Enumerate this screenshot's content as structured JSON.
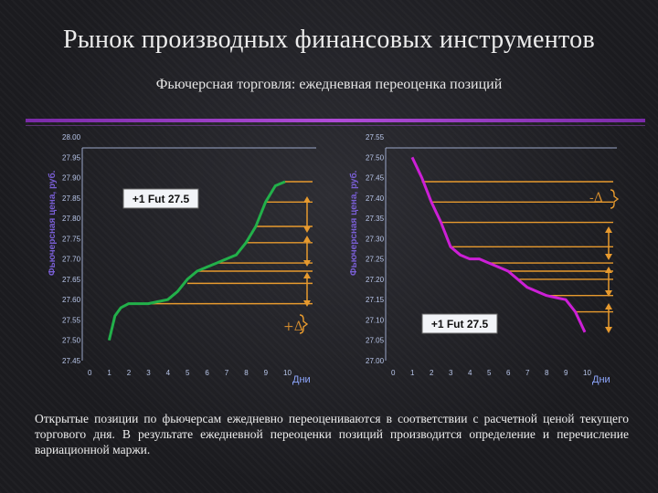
{
  "slide": {
    "title": "Рынок производных финансовых инструментов",
    "subtitle": "Фьючерсная торговля: ежедневная переоценка позиций",
    "body": "Открытые позиции по фьючерсам ежедневно переоцениваются в соответствии с расчетной ценой текущего торгового дня. В результате ежедневной переоценки позиций производится определение и перечисление вариационной маржи."
  },
  "colors": {
    "green_line": "#22b04a",
    "magenta_line": "#cc1fd6",
    "orange": "#e79a2e",
    "tick": "#b8c6ea",
    "axis_unit": "#8fa8ff",
    "divider": "#a040d0"
  },
  "chart_data": [
    {
      "type": "line",
      "ylabel": "Фьючерсная цена, руб.",
      "xlabel": "Дни",
      "x_ticks": [
        "0",
        "1",
        "2",
        "3",
        "4",
        "5",
        "6",
        "7",
        "8",
        "9",
        "10"
      ],
      "y_ticks": [
        "27.45",
        "27.50",
        "27.55",
        "27.60",
        "27.65",
        "27.70",
        "27.75",
        "27.80",
        "27.85",
        "27.90",
        "27.95",
        "28.00"
      ],
      "xlim": [
        0,
        10.5
      ],
      "ylim": [
        27.45,
        28.0
      ],
      "series": [
        {
          "color": "#22b04a",
          "x": [
            1,
            1.3,
            1.6,
            2,
            3,
            3.5,
            4,
            4.5,
            5,
            5.5,
            6,
            6.5,
            7,
            7.5,
            8,
            8.5,
            9,
            9.5,
            10
          ],
          "y": [
            27.5,
            27.56,
            27.58,
            27.59,
            27.59,
            27.595,
            27.6,
            27.62,
            27.65,
            27.67,
            27.68,
            27.69,
            27.7,
            27.71,
            27.74,
            27.78,
            27.84,
            27.88,
            27.89
          ]
        }
      ],
      "annotations": [
        "+1 Fut 27.5",
        "+Δ"
      ],
      "reference_levels": [
        27.89,
        27.84,
        27.78,
        27.74,
        27.69,
        27.67,
        27.64,
        27.59
      ]
    },
    {
      "type": "line",
      "ylabel": "Фьючерсная цена, руб.",
      "xlabel": "Дни",
      "x_ticks": [
        "0",
        "1",
        "2",
        "3",
        "4",
        "5",
        "6",
        "7",
        "8",
        "9",
        "10"
      ],
      "y_ticks": [
        "27.00",
        "27.05",
        "27.10",
        "27.15",
        "27.20",
        "27.25",
        "27.30",
        "27.35",
        "27.40",
        "27.45",
        "27.50",
        "27.55"
      ],
      "xlim": [
        0,
        10.5
      ],
      "ylim": [
        27.0,
        27.55
      ],
      "series": [
        {
          "color": "#cc1fd6",
          "x": [
            1,
            1.5,
            2,
            2.5,
            3,
            3.5,
            4,
            4.5,
            5,
            5.5,
            6,
            6.5,
            7,
            7.5,
            8,
            8.5,
            9,
            9.5,
            10
          ],
          "y": [
            27.5,
            27.45,
            27.39,
            27.34,
            27.28,
            27.26,
            27.25,
            27.25,
            27.24,
            27.23,
            27.22,
            27.2,
            27.18,
            27.17,
            27.16,
            27.155,
            27.15,
            27.12,
            27.07
          ]
        }
      ],
      "annotations": [
        "-Δ",
        "+1 Fut 27.5"
      ],
      "reference_levels": [
        27.44,
        27.39,
        27.34,
        27.28,
        27.24,
        27.22,
        27.2,
        27.16,
        27.12
      ]
    }
  ]
}
